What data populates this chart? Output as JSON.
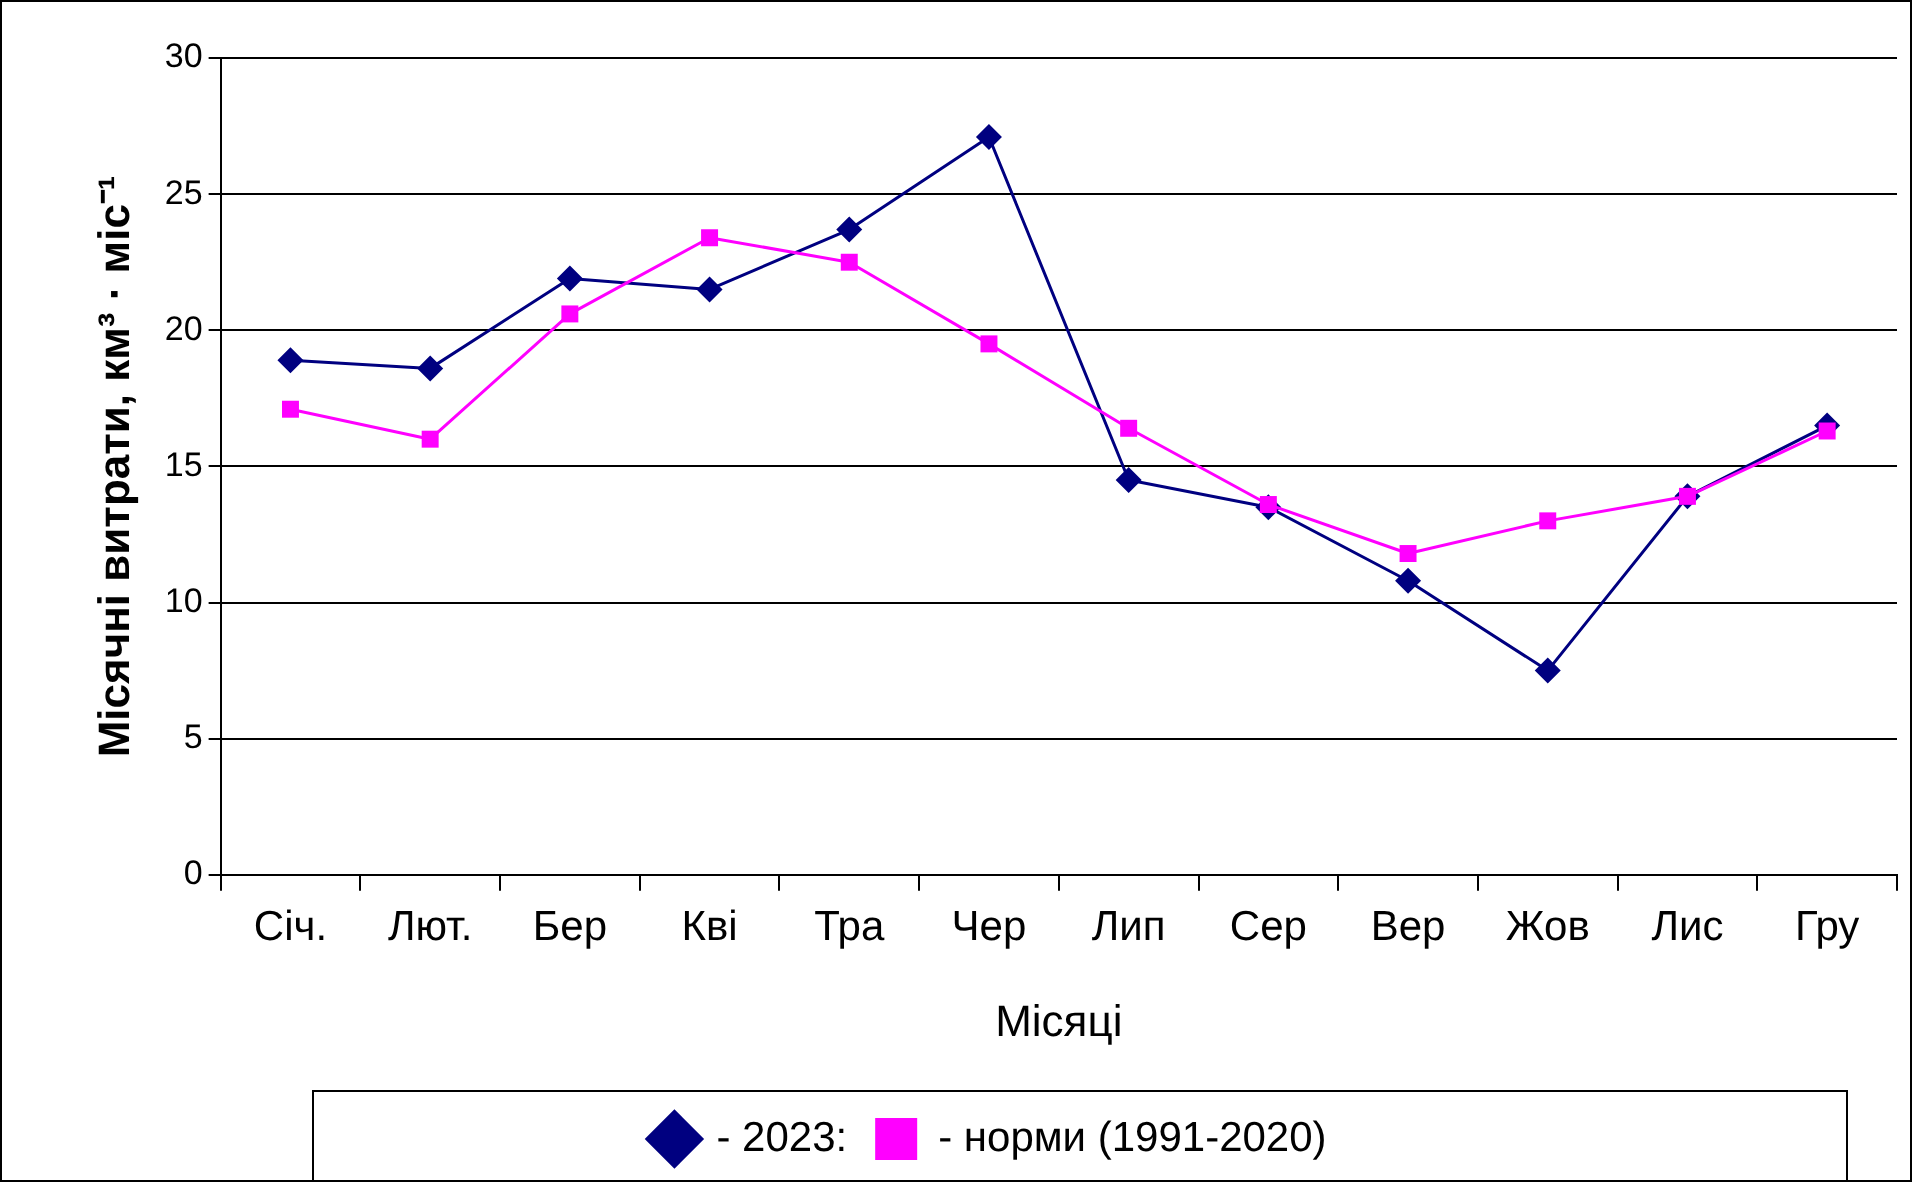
{
  "chart_data": {
    "type": "line",
    "xlabel": "Місяці",
    "ylabel": "Місячні витрати, км³ · міс⁻¹",
    "categories": [
      "Січ.",
      "Лют.",
      "Бер",
      "Кві",
      "Тра",
      "Чер",
      "Лип",
      "Сер",
      "Вер",
      "Жов",
      "Лис",
      "Гру"
    ],
    "series": [
      {
        "name": "- 2023:",
        "color": "#000080",
        "marker": "diamond",
        "values": [
          18.9,
          18.6,
          21.9,
          21.5,
          23.7,
          27.1,
          14.5,
          13.5,
          10.8,
          7.5,
          13.9,
          16.5
        ]
      },
      {
        "name": "- норми (1991-2020)",
        "color": "#ff00ff",
        "marker": "square",
        "values": [
          17.1,
          16.0,
          20.6,
          23.4,
          22.5,
          19.5,
          16.4,
          13.6,
          11.8,
          13.0,
          13.9,
          16.3
        ]
      }
    ],
    "ylim": [
      0,
      30
    ],
    "yticks": [
      0,
      5,
      10,
      15,
      20,
      25,
      30
    ],
    "grid": "y",
    "legend": "bottom",
    "line_style": "solid"
  }
}
